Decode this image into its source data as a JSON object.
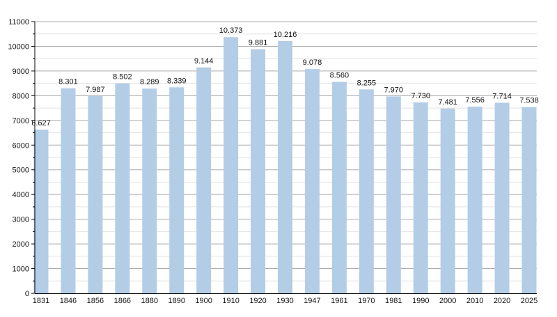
{
  "chart_data": {
    "type": "bar",
    "title": "",
    "xlabel": "",
    "ylabel": "",
    "categories": [
      "1831",
      "1846",
      "1856",
      "1866",
      "1880",
      "1890",
      "1900",
      "1910",
      "1920",
      "1930",
      "1947",
      "1961",
      "1970",
      "1981",
      "1990",
      "2000",
      "2010",
      "2020",
      "2025"
    ],
    "values": [
      6627,
      8301,
      7987,
      8502,
      8289,
      8339,
      9144,
      10373,
      9881,
      10216,
      9078,
      8560,
      8255,
      7970,
      7730,
      7481,
      7556,
      7714,
      7538
    ],
    "data_labels": [
      "6.627",
      "8.301",
      "7.987",
      "8.502",
      "8.289",
      "8.339",
      "9.144",
      "10.373",
      "9.881",
      "10.216",
      "9.078",
      "8.560",
      "8.255",
      "7.970",
      "7.730",
      "7.481",
      "7.556",
      "7.714",
      "7.538"
    ],
    "ylim": [
      0,
      11000
    ],
    "yticks": [
      "0",
      "1000",
      "2000",
      "3000",
      "4000",
      "5000",
      "6000",
      "7000",
      "8000",
      "9000",
      "10000",
      "11000"
    ],
    "grid": true,
    "colors": {
      "bar": "#b3cde6",
      "grid_major": "#aaaaaa",
      "grid_minor": "#e2e2e2",
      "axis": "#000000"
    }
  }
}
